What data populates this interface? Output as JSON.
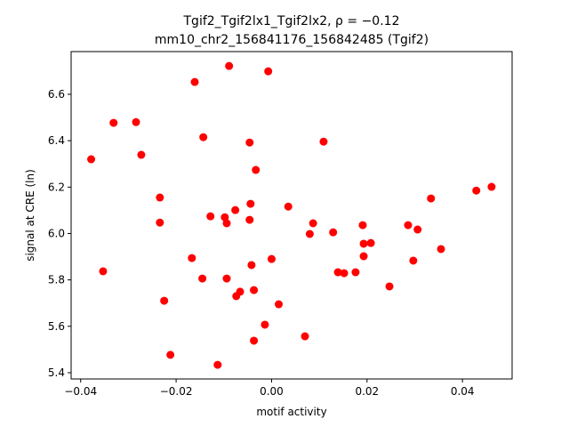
{
  "chart_data": {
    "type": "scatter",
    "title": "Tgif2_Tgif2lx1_Tgif2lx2, ρ = −0.12",
    "subtitle": "mm10_chr2_156841176_156842485 (Tgif2)",
    "x_label": "motif activity",
    "y_label": "signal at CRE (ln)",
    "color": "#ff0000",
    "xlim": [
      -0.042,
      0.0504
    ],
    "ylim": [
      5.373,
      6.784
    ],
    "xticks": [
      {
        "value": -0.04,
        "label": "−0.04"
      },
      {
        "value": -0.02,
        "label": "−0.02"
      },
      {
        "value": 0,
        "label": "0.00"
      },
      {
        "value": 0.02,
        "label": "0.02"
      },
      {
        "value": 0.04,
        "label": "0.04"
      }
    ],
    "yticks": [
      5.4,
      5.6,
      5.8,
      {
        "value": 6.0,
        "label": "6.0"
      },
      6.2,
      6.4,
      6.6
    ],
    "x": [
      -0.0378,
      -0.0353,
      -0.0331,
      -0.0284,
      -0.0273,
      -0.0234,
      -0.0234,
      -0.0225,
      -0.0212,
      -0.0167,
      -0.0161,
      -0.0143,
      -0.0145,
      -0.0128,
      -0.0113,
      -0.0098,
      -0.0094,
      -0.0094,
      -0.0089,
      -0.0076,
      -0.0074,
      -0.0066,
      -0.0046,
      -0.0044,
      -0.0046,
      -0.0042,
      -0.0037,
      -0.0037,
      -0.0033,
      -0.0014,
      -0.0007,
      0.0,
      0.0015,
      0.0035,
      0.007,
      0.008,
      0.0087,
      0.0109,
      0.0129,
      0.0139,
      0.0152,
      0.0176,
      0.0191,
      0.0193,
      0.0193,
      0.0208,
      0.0247,
      0.0286,
      0.0297,
      0.0306,
      0.0334,
      0.0355,
      0.0429,
      0.0461
    ],
    "values": [
      6.32,
      5.837,
      6.477,
      6.48,
      6.339,
      6.155,
      6.047,
      5.71,
      5.477,
      5.894,
      6.653,
      6.415,
      5.806,
      6.074,
      5.434,
      6.07,
      6.044,
      5.806,
      6.722,
      6.101,
      5.73,
      5.749,
      6.392,
      6.128,
      6.059,
      5.864,
      5.538,
      5.756,
      6.274,
      5.607,
      6.699,
      5.89,
      5.695,
      6.116,
      5.557,
      5.998,
      6.044,
      6.396,
      6.005,
      5.833,
      5.829,
      5.833,
      6.036,
      5.956,
      5.902,
      5.959,
      5.772,
      6.036,
      5.883,
      6.017,
      6.151,
      5.933,
      6.185,
      6.201
    ]
  }
}
